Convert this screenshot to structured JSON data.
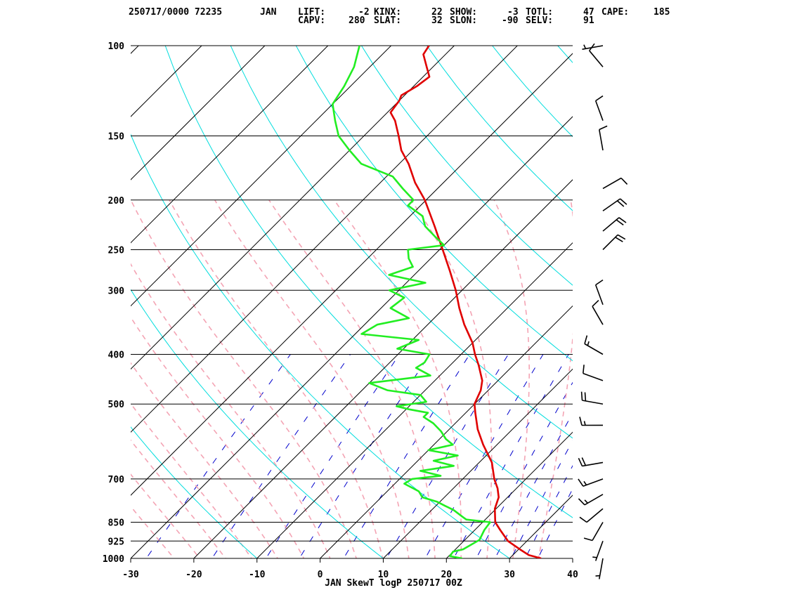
{
  "header": {
    "station_time": "250717/0000",
    "station_id": "72235",
    "station_name": "JAN",
    "indices_row1": [
      {
        "label": "LIFT:",
        "value": "-2"
      },
      {
        "label": "KINX:",
        "value": "22"
      },
      {
        "label": "SHOW:",
        "value": "-3"
      },
      {
        "label": "TOTL:",
        "value": "47"
      },
      {
        "label": "CAPE:",
        "value": "185"
      }
    ],
    "indices_row2": [
      {
        "label": "CAPV:",
        "value": "280"
      },
      {
        "label": "SLAT:",
        "value": "32"
      },
      {
        "label": "SLON:",
        "value": "-90"
      },
      {
        "label": "SELV:",
        "value": "91"
      }
    ]
  },
  "chart_data": {
    "type": "line",
    "title": "JAN SkewT logP 250717 00Z",
    "x_axis": {
      "label": "",
      "ticks": [
        -30,
        -20,
        -10,
        0,
        10,
        20,
        30,
        40
      ],
      "range": [
        -30,
        40
      ],
      "units": "degC"
    },
    "y_axis": {
      "label": "",
      "scale": "log",
      "ticks": [
        100,
        150,
        200,
        250,
        300,
        400,
        500,
        700,
        850,
        925,
        1000
      ],
      "range": [
        1000,
        100
      ],
      "units": "hPa"
    },
    "grid": true,
    "skew": "temperature isotherms skewed 45 degrees",
    "background_lines": {
      "isobars_color": "#000000",
      "isotherms_color": "#000000",
      "dry_adiabats_color": "#00dddd",
      "moist_adiabats_color": "#f4a4b4",
      "mixing_ratio_color": "#0000cc"
    },
    "series": [
      {
        "color": "#e00000",
        "points": [
          {
            "p": 1000,
            "t": 35.0
          },
          {
            "p": 985,
            "t": 32.5
          },
          {
            "p": 960,
            "t": 30.2
          },
          {
            "p": 925,
            "t": 27.0
          },
          {
            "p": 880,
            "t": 24.0
          },
          {
            "p": 850,
            "t": 22.0
          },
          {
            "p": 800,
            "t": 19.8
          },
          {
            "p": 760,
            "t": 18.6
          },
          {
            "p": 730,
            "t": 17.0
          },
          {
            "p": 700,
            "t": 15.0
          },
          {
            "p": 650,
            "t": 12.0
          },
          {
            "p": 600,
            "t": 7.8
          },
          {
            "p": 560,
            "t": 4.5
          },
          {
            "p": 520,
            "t": 1.5
          },
          {
            "p": 500,
            "t": 0.0
          },
          {
            "p": 470,
            "t": -1.2
          },
          {
            "p": 450,
            "t": -2.5
          },
          {
            "p": 420,
            "t": -5.5
          },
          {
            "p": 400,
            "t": -7.8
          },
          {
            "p": 380,
            "t": -10.0
          },
          {
            "p": 350,
            "t": -14.2
          },
          {
            "p": 325,
            "t": -17.6
          },
          {
            "p": 300,
            "t": -21.0
          },
          {
            "p": 275,
            "t": -25.0
          },
          {
            "p": 250,
            "t": -29.5
          },
          {
            "p": 225,
            "t": -34.5
          },
          {
            "p": 200,
            "t": -40.2
          },
          {
            "p": 185,
            "t": -44.5
          },
          {
            "p": 170,
            "t": -48.5
          },
          {
            "p": 160,
            "t": -51.8
          },
          {
            "p": 150,
            "t": -54.5
          },
          {
            "p": 140,
            "t": -57.5
          },
          {
            "p": 135,
            "t": -59.5
          },
          {
            "p": 128,
            "t": -60.0
          },
          {
            "p": 125,
            "t": -60.5
          },
          {
            "p": 120,
            "t": -59.5
          },
          {
            "p": 115,
            "t": -59.0
          },
          {
            "p": 110,
            "t": -61.0
          },
          {
            "p": 104,
            "t": -63.5
          },
          {
            "p": 100,
            "t": -64.0
          }
        ]
      },
      {
        "color": "#22ee22",
        "points": [
          {
            "p": 1000,
            "t": 22.5
          },
          {
            "p": 990,
            "t": 20.2
          },
          {
            "p": 970,
            "t": 20.0
          },
          {
            "p": 960,
            "t": 21.2
          },
          {
            "p": 920,
            "t": 22.3
          },
          {
            "p": 880,
            "t": 21.5
          },
          {
            "p": 850,
            "t": 21.2
          },
          {
            "p": 840,
            "t": 17.0
          },
          {
            "p": 830,
            "t": 16.0
          },
          {
            "p": 815,
            "t": 14.5
          },
          {
            "p": 805,
            "t": 13.5
          },
          {
            "p": 790,
            "t": 11.5
          },
          {
            "p": 775,
            "t": 9.5
          },
          {
            "p": 760,
            "t": 6.5
          },
          {
            "p": 740,
            "t": 5.0
          },
          {
            "p": 715,
            "t": 1.5
          },
          {
            "p": 700,
            "t": 2.0
          },
          {
            "p": 690,
            "t": 6.0
          },
          {
            "p": 675,
            "t": 2.0
          },
          {
            "p": 660,
            "t": 6.5
          },
          {
            "p": 645,
            "t": 2.5
          },
          {
            "p": 630,
            "t": 5.5
          },
          {
            "p": 615,
            "t": 0.0
          },
          {
            "p": 600,
            "t": 3.0
          },
          {
            "p": 585,
            "t": 1.0
          },
          {
            "p": 565,
            "t": -1.0
          },
          {
            "p": 545,
            "t": -3.5
          },
          {
            "p": 530,
            "t": -6.0
          },
          {
            "p": 520,
            "t": -6.0
          },
          {
            "p": 512,
            "t": -9.5
          },
          {
            "p": 505,
            "t": -12.0
          },
          {
            "p": 495,
            "t": -8.0
          },
          {
            "p": 480,
            "t": -10.0
          },
          {
            "p": 470,
            "t": -16.0
          },
          {
            "p": 455,
            "t": -20.0
          },
          {
            "p": 440,
            "t": -11.5
          },
          {
            "p": 425,
            "t": -15.0
          },
          {
            "p": 415,
            "t": -14.5
          },
          {
            "p": 400,
            "t": -15.0
          },
          {
            "p": 390,
            "t": -21.0
          },
          {
            "p": 375,
            "t": -19.0
          },
          {
            "p": 365,
            "t": -29.0
          },
          {
            "p": 350,
            "t": -28.0
          },
          {
            "p": 340,
            "t": -24.0
          },
          {
            "p": 325,
            "t": -28.5
          },
          {
            "p": 310,
            "t": -28.0
          },
          {
            "p": 300,
            "t": -31.5
          },
          {
            "p": 290,
            "t": -27.0
          },
          {
            "p": 280,
            "t": -34.0
          },
          {
            "p": 270,
            "t": -31.5
          },
          {
            "p": 260,
            "t": -33.5
          },
          {
            "p": 250,
            "t": -35.0
          },
          {
            "p": 245,
            "t": -30.0
          },
          {
            "p": 235,
            "t": -33.0
          },
          {
            "p": 225,
            "t": -36.0
          },
          {
            "p": 215,
            "t": -38.0
          },
          {
            "p": 205,
            "t": -42.0
          },
          {
            "p": 200,
            "t": -42.0
          },
          {
            "p": 190,
            "t": -45.5
          },
          {
            "p": 180,
            "t": -49.0
          },
          {
            "p": 170,
            "t": -56.0
          },
          {
            "p": 160,
            "t": -60.0
          },
          {
            "p": 150,
            "t": -64.0
          },
          {
            "p": 140,
            "t": -67.0
          },
          {
            "p": 130,
            "t": -70.0
          },
          {
            "p": 120,
            "t": -71.0
          },
          {
            "p": 110,
            "t": -72.5
          },
          {
            "p": 100,
            "t": -75.0
          }
        ]
      }
    ],
    "wind_barbs": [
      {
        "p": 1000,
        "dir": 190,
        "kt": 5
      },
      {
        "p": 925,
        "dir": 200,
        "kt": 5
      },
      {
        "p": 850,
        "dir": 210,
        "kt": 10
      },
      {
        "p": 800,
        "dir": 230,
        "kt": 10
      },
      {
        "p": 750,
        "dir": 240,
        "kt": 15
      },
      {
        "p": 700,
        "dir": 250,
        "kt": 15
      },
      {
        "p": 650,
        "dir": 260,
        "kt": 20
      },
      {
        "p": 550,
        "dir": 270,
        "kt": 15
      },
      {
        "p": 500,
        "dir": 280,
        "kt": 20
      },
      {
        "p": 450,
        "dir": 290,
        "kt": 10
      },
      {
        "p": 400,
        "dir": 300,
        "kt": 15
      },
      {
        "p": 350,
        "dir": 330,
        "kt": 10
      },
      {
        "p": 320,
        "dir": 340,
        "kt": 10
      },
      {
        "p": 250,
        "dir": 45,
        "kt": 20
      },
      {
        "p": 230,
        "dir": 50,
        "kt": 20
      },
      {
        "p": 210,
        "dir": 55,
        "kt": 20
      },
      {
        "p": 190,
        "dir": 60,
        "kt": 10
      },
      {
        "p": 160,
        "dir": 350,
        "kt": 10
      },
      {
        "p": 140,
        "dir": 340,
        "kt": 10
      },
      {
        "p": 110,
        "dir": 320,
        "kt": 10
      },
      {
        "p": 100,
        "dir": 260,
        "kt": 5
      }
    ]
  }
}
